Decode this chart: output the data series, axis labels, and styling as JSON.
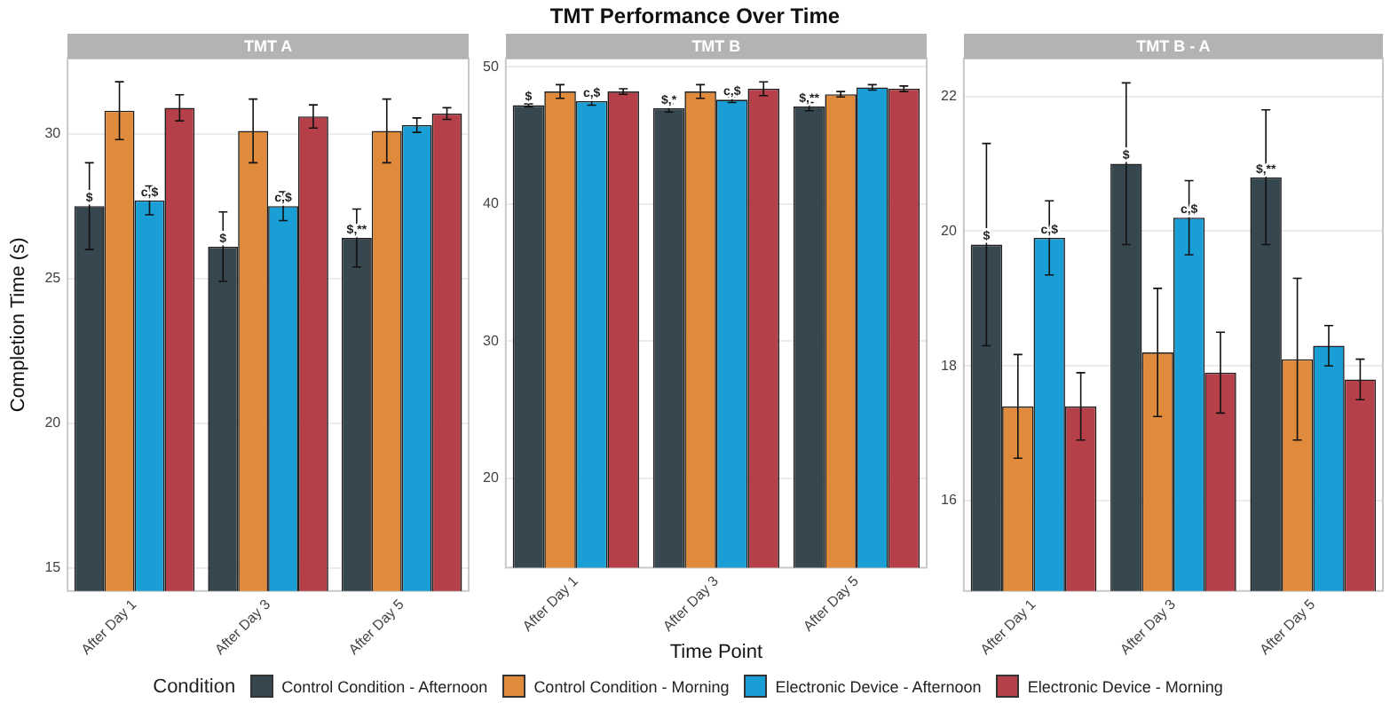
{
  "chart_data": [
    {
      "type": "bar",
      "subtitle": "TMT A",
      "ylabel": "Completion Time (s)",
      "legend_title": "Condition",
      "legend": "bottom",
      "grid": "y",
      "categories": [
        "After Day 1",
        "After Day 3",
        "After Day 5"
      ],
      "ylim": [
        14.2,
        32.6
      ],
      "yticks": [
        15,
        20,
        25,
        30
      ],
      "series": [
        {
          "name": "Control Condition - Afternoon",
          "color": "#36474f",
          "values": [
            27.5,
            26.1,
            26.4
          ],
          "errors": [
            1.5,
            1.2,
            1.0
          ],
          "value_labels": [
            "$",
            "$",
            "$,**"
          ]
        },
        {
          "name": "Control Condition - Morning",
          "color": "#e08a3c",
          "values": [
            30.8,
            30.1,
            30.1
          ],
          "errors": [
            1.0,
            1.1,
            1.1
          ]
        },
        {
          "name": "Electronic Device - Afternoon",
          "color": "#1a9ed6",
          "values": [
            27.7,
            27.5,
            30.3
          ],
          "errors": [
            0.5,
            0.5,
            0.25
          ],
          "value_labels": [
            "c,$",
            "c,$",
            null
          ]
        },
        {
          "name": "Electronic Device - Morning",
          "color": "#b5404a",
          "values": [
            30.9,
            30.6,
            30.7
          ],
          "errors": [
            0.45,
            0.4,
            0.2
          ]
        }
      ]
    },
    {
      "type": "bar",
      "title": "TMT Performance Over Time",
      "subtitle": "TMT B",
      "xlabel": "Time Point",
      "grid": "y",
      "categories": [
        "After Day 1",
        "After Day 3",
        "After Day 5"
      ],
      "ylim": [
        13.5,
        50.6
      ],
      "yticks": [
        20,
        30,
        40,
        50
      ],
      "series": [
        {
          "color": "#36474f",
          "values": [
            47.2,
            47.0,
            47.1
          ],
          "errors": [
            0.1,
            0.3,
            0.3
          ],
          "value_labels": [
            "$",
            "$,*",
            "$,**"
          ]
        },
        {
          "color": "#e08a3c",
          "values": [
            48.2,
            48.2,
            48.0
          ],
          "errors": [
            0.5,
            0.5,
            0.2
          ]
        },
        {
          "color": "#1a9ed6",
          "values": [
            47.5,
            47.6,
            48.5
          ],
          "errors": [
            0.3,
            0.2,
            0.2
          ],
          "value_labels": [
            "c,$",
            "c,$",
            null
          ]
        },
        {
          "color": "#b5404a",
          "values": [
            48.2,
            48.4,
            48.4
          ],
          "errors": [
            0.2,
            0.5,
            0.2
          ]
        }
      ]
    },
    {
      "type": "bar",
      "subtitle": "TMT B - A",
      "grid": "y",
      "categories": [
        "After Day 1",
        "After Day 3",
        "After Day 5"
      ],
      "ylim": [
        14.66,
        22.56
      ],
      "yticks": [
        16,
        18,
        20,
        22
      ],
      "series": [
        {
          "color": "#36474f",
          "values": [
            19.8,
            21.0,
            20.8
          ],
          "errors": [
            1.5,
            1.2,
            1.0
          ],
          "value_labels": [
            "$",
            "$",
            "$,**"
          ]
        },
        {
          "color": "#e08a3c",
          "values": [
            17.4,
            18.2,
            18.1
          ],
          "errors": [
            0.77,
            0.95,
            1.2
          ]
        },
        {
          "color": "#1a9ed6",
          "values": [
            19.9,
            20.2,
            18.3
          ],
          "errors": [
            0.55,
            0.55,
            0.3
          ],
          "value_labels": [
            "c,$",
            "c,$",
            null
          ]
        },
        {
          "color": "#b5404a",
          "values": [
            17.4,
            17.9,
            17.8
          ],
          "errors": [
            0.5,
            0.6,
            0.3
          ]
        }
      ]
    }
  ]
}
